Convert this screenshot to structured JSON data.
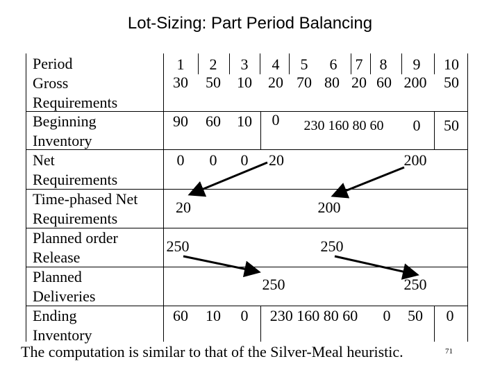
{
  "title": "Lot-Sizing: Part Period Balancing",
  "rows": [
    {
      "label": "Period",
      "cells": [
        "1",
        "2",
        "3",
        "4",
        "5",
        "6",
        "7",
        "8",
        "9",
        "10"
      ]
    },
    {
      "label": "Gross\nRequirements",
      "cells": [
        "30",
        "50",
        "10",
        "20",
        "70",
        "80",
        "20",
        "60",
        "200",
        "50"
      ]
    },
    {
      "label": "Beginning\nInventory",
      "cells": [
        "90",
        "60",
        "10",
        "0",
        "230 160 80 60",
        "0",
        "50"
      ]
    },
    {
      "label": "Net\nRequirements",
      "cells": [
        "0",
        "0",
        "0",
        "20",
        "200"
      ]
    },
    {
      "label": "Time-phased Net\nRequirements",
      "cells": [
        "20",
        "200"
      ]
    },
    {
      "label": "Planned order\nRelease",
      "cells": [
        "250",
        "250"
      ]
    },
    {
      "label": "Planned\nDeliveries",
      "cells": [
        "250",
        "250"
      ]
    },
    {
      "label": "Ending\nInventory",
      "cells": [
        "60",
        "10",
        "0",
        "230 160 80 60",
        "0",
        "50",
        "0"
      ]
    }
  ],
  "caption": "The computation is similar to that of the Silver-Meal heuristic.",
  "page_number": "71"
}
